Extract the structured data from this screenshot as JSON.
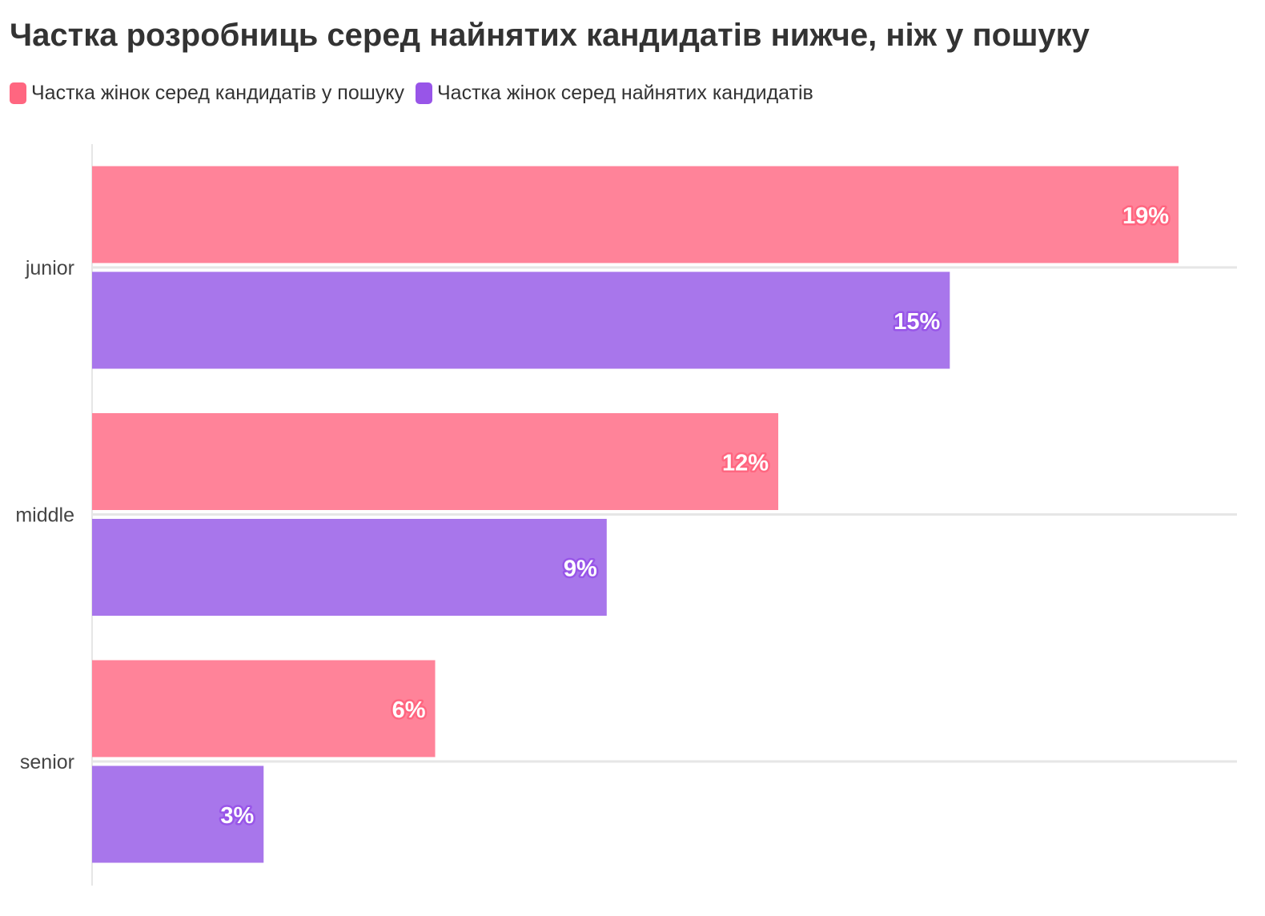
{
  "chart_data": {
    "type": "bar",
    "orientation": "horizontal",
    "title": "Частка розробниць серед найнятих кандидатів нижче, ніж у пошуку",
    "categories": [
      "junior",
      "middle",
      "senior"
    ],
    "series": [
      {
        "name": "Частка жінок серед кандидатів у пошуку",
        "values": [
          19,
          12,
          6
        ],
        "labels": [
          "19%",
          "12%",
          "6%"
        ],
        "color": "#ff8399",
        "legend_color": "#ff6680",
        "stroke_color": "#ff6680"
      },
      {
        "name": "Частка жінок серед найнятих кандидатів",
        "values": [
          15,
          9,
          3
        ],
        "labels": [
          "15%",
          "9%",
          "3%"
        ],
        "color": "#a876eb",
        "legend_color": "#9855e8",
        "stroke_color": "#9855e8"
      }
    ],
    "xlim": [
      0,
      19
    ],
    "grid": true,
    "legend_position": "top-left"
  }
}
